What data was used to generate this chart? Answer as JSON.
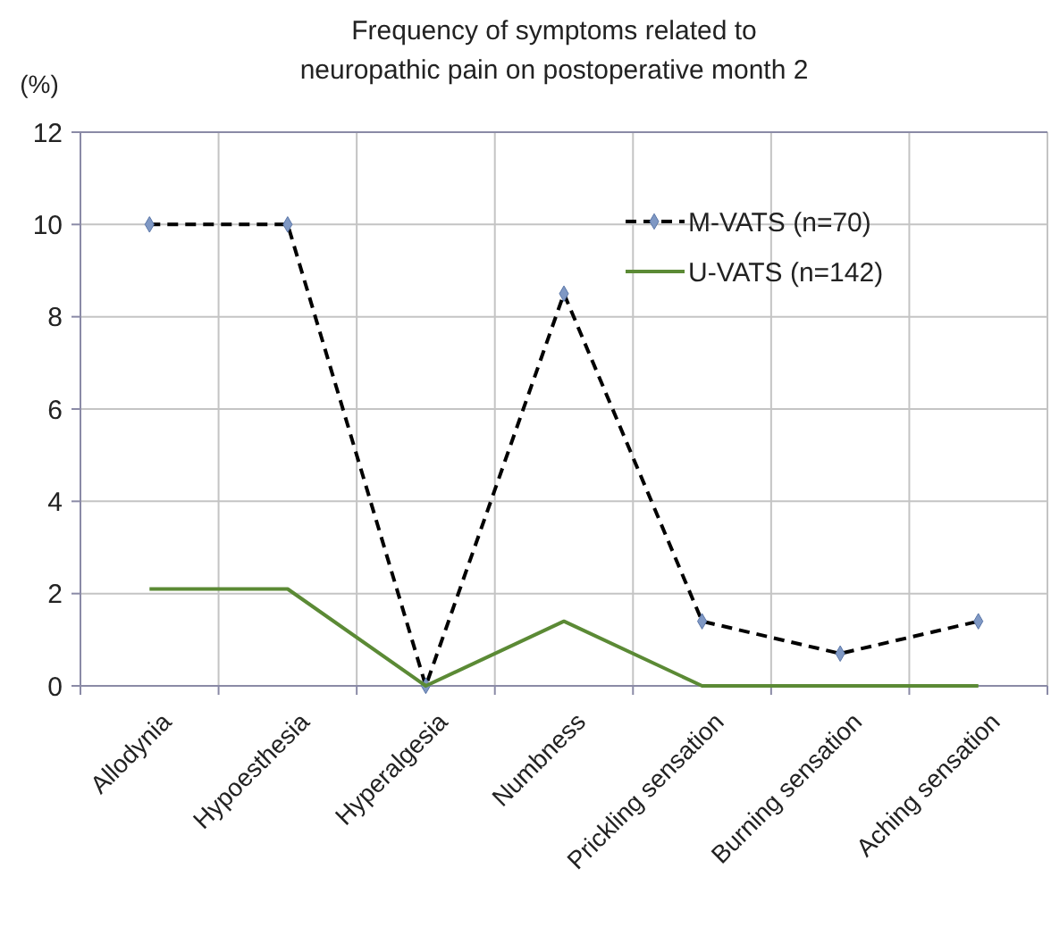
{
  "chart_data": {
    "type": "line",
    "title": "Frequency of symptoms related to\nneuropathic  pain on postoperative month 2",
    "ylabel": "(%)",
    "categories": [
      "Allodynia",
      "Hypoesthesia",
      "Hyperalgesia",
      "Numbness",
      "Prickling sensation",
      "Burning sensation",
      "Aching sensation"
    ],
    "series": [
      {
        "name": "M-VATS (n=70)",
        "color": "#000000",
        "line_style": "dashed",
        "marker": "diamond",
        "values": [
          10,
          10,
          0,
          8.5,
          1.4,
          0.7,
          1.4
        ]
      },
      {
        "name": "U-VATS (n=142)",
        "color": "#5b8a35",
        "line_style": "solid",
        "marker": "none",
        "values": [
          2.1,
          2.1,
          0,
          1.4,
          0,
          0,
          0
        ]
      }
    ],
    "ylim": [
      0,
      12
    ],
    "yticks": [
      0,
      2,
      4,
      6,
      8,
      10,
      12
    ],
    "grid": true,
    "legend": "top right"
  }
}
